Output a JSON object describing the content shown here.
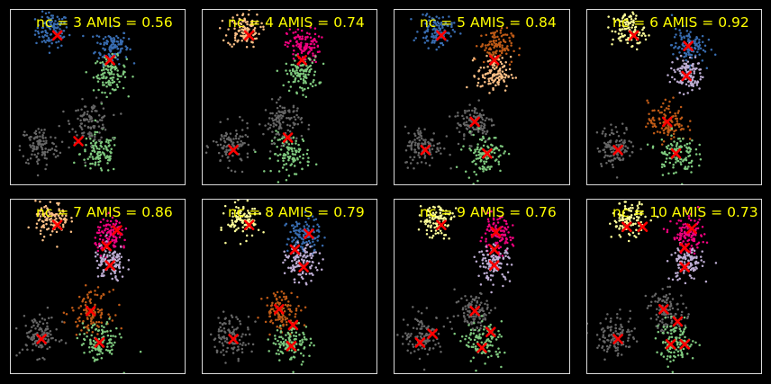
{
  "figure": {
    "background": "#000000",
    "frame_color": "#d9d9d9",
    "title_color": "#ffff00",
    "centroid_color": "#ff0000",
    "centroid_marker": "x-icon"
  },
  "chart_data": [
    {
      "type": "scatter",
      "title": "nc = 3 AMIS = 0.56",
      "xlim": [
        0,
        100
      ],
      "ylim": [
        0,
        100
      ],
      "grid": false,
      "axes_ticks": false,
      "clusters": [
        {
          "color": "#386cb0",
          "members": [
            [
              24,
              88,
              6
            ],
            [
              58,
              79,
              6
            ]
          ]
        },
        {
          "color": "#7fc97f",
          "members": [
            [
              57,
              63,
              6
            ],
            [
              51,
              18,
              7
            ]
          ]
        },
        {
          "color": "#666666",
          "members": [
            [
              46,
              36,
              7
            ],
            [
              17,
              22,
              7
            ]
          ]
        }
      ],
      "centroids": [
        [
          27,
          85
        ],
        [
          57,
          71
        ],
        [
          39,
          25
        ]
      ]
    },
    {
      "type": "scatter",
      "title": "nc = 4 AMIS = 0.74",
      "xlim": [
        0,
        100
      ],
      "ylim": [
        0,
        100
      ],
      "grid": false,
      "axes_ticks": false,
      "clusters": [
        {
          "color": "#fdc086",
          "members": [
            [
              24,
              88,
              6
            ]
          ]
        },
        {
          "color": "#f0027f",
          "members": [
            [
              58,
              79,
              6
            ]
          ]
        },
        {
          "color": "#7fc97f",
          "members": [
            [
              57,
              63,
              6
            ],
            [
              51,
              18,
              7
            ]
          ]
        },
        {
          "color": "#666666",
          "members": [
            [
              46,
              36,
              7
            ],
            [
              17,
              22,
              7
            ]
          ]
        }
      ],
      "centroids": [
        [
          27,
          85
        ],
        [
          57,
          71
        ],
        [
          49,
          27
        ],
        [
          18,
          20
        ]
      ]
    },
    {
      "type": "scatter",
      "title": "nc = 5 AMIS = 0.84",
      "xlim": [
        0,
        100
      ],
      "ylim": [
        0,
        100
      ],
      "grid": false,
      "axes_ticks": false,
      "clusters": [
        {
          "color": "#386cb0",
          "members": [
            [
              24,
              88,
              6
            ]
          ]
        },
        {
          "color": "#bf5b17",
          "members": [
            [
              58,
              79,
              6
            ]
          ]
        },
        {
          "color": "#fdc086",
          "members": [
            [
              57,
              63,
              6
            ]
          ]
        },
        {
          "color": "#666666",
          "members": [
            [
              46,
              36,
              7
            ],
            [
              17,
              22,
              7
            ]
          ]
        },
        {
          "color": "#7fc97f",
          "members": [
            [
              51,
              18,
              7
            ]
          ]
        }
      ],
      "centroids": [
        [
          27,
          85
        ],
        [
          57,
          71
        ],
        [
          46,
          36
        ],
        [
          18,
          20
        ],
        [
          53,
          18
        ]
      ]
    },
    {
      "type": "scatter",
      "title": "nc = 6 AMIS = 0.92",
      "xlim": [
        0,
        100
      ],
      "ylim": [
        0,
        100
      ],
      "grid": false,
      "axes_ticks": false,
      "clusters": [
        {
          "color": "#ffff99",
          "members": [
            [
              24,
              88,
              6
            ]
          ]
        },
        {
          "color": "#386cb0",
          "members": [
            [
              58,
              79,
              6
            ]
          ]
        },
        {
          "color": "#beaed4",
          "members": [
            [
              57,
              63,
              6
            ]
          ]
        },
        {
          "color": "#bf5b17",
          "members": [
            [
              46,
              36,
              7
            ]
          ]
        },
        {
          "color": "#666666",
          "members": [
            [
              17,
              22,
              7
            ]
          ]
        },
        {
          "color": "#7fc97f",
          "members": [
            [
              51,
              18,
              7
            ]
          ]
        }
      ],
      "centroids": [
        [
          27,
          85
        ],
        [
          58,
          79
        ],
        [
          57,
          62
        ],
        [
          46,
          36
        ],
        [
          18,
          20
        ],
        [
          51,
          18
        ]
      ]
    },
    {
      "type": "scatter",
      "title": "nc = 7 AMIS = 0.86",
      "xlim": [
        0,
        100
      ],
      "ylim": [
        0,
        100
      ],
      "grid": false,
      "axes_ticks": false,
      "clusters": [
        {
          "color": "#fdc086",
          "members": [
            [
              24,
              88,
              6
            ]
          ]
        },
        {
          "color": "#f0027f",
          "members": [
            [
              58,
              79,
              6
            ]
          ]
        },
        {
          "color": "#beaed4",
          "members": [
            [
              57,
              63,
              6
            ]
          ]
        },
        {
          "color": "#bf5b17",
          "members": [
            [
              46,
              36,
              7
            ]
          ]
        },
        {
          "color": "#666666",
          "members": [
            [
              17,
              22,
              7
            ]
          ]
        },
        {
          "color": "#7fc97f",
          "members": [
            [
              51,
              18,
              7
            ]
          ]
        }
      ],
      "centroids": [
        [
          27,
          85
        ],
        [
          61,
          82
        ],
        [
          55,
          73
        ],
        [
          57,
          62
        ],
        [
          46,
          36
        ],
        [
          18,
          20
        ],
        [
          51,
          18
        ]
      ]
    },
    {
      "type": "scatter",
      "title": "nc = 8 AMIS = 0.79",
      "xlim": [
        0,
        100
      ],
      "ylim": [
        0,
        100
      ],
      "grid": false,
      "axes_ticks": false,
      "clusters": [
        {
          "color": "#ffff99",
          "members": [
            [
              24,
              88,
              6
            ]
          ]
        },
        {
          "color": "#386cb0",
          "members": [
            [
              58,
              79,
              6
            ]
          ]
        },
        {
          "color": "#beaed4",
          "members": [
            [
              57,
              63,
              6
            ]
          ]
        },
        {
          "color": "#bf5b17",
          "members": [
            [
              46,
              36,
              7
            ]
          ]
        },
        {
          "color": "#666666",
          "members": [
            [
              17,
              22,
              7
            ]
          ]
        },
        {
          "color": "#7fc97f",
          "members": [
            [
              51,
              18,
              7
            ]
          ]
        }
      ],
      "centroids": [
        [
          27,
          85
        ],
        [
          61,
          80
        ],
        [
          53,
          71
        ],
        [
          58,
          61
        ],
        [
          44,
          37
        ],
        [
          52,
          28
        ],
        [
          18,
          20
        ],
        [
          51,
          16
        ]
      ]
    },
    {
      "type": "scatter",
      "title": "nc = 9 AMIS = 0.76",
      "xlim": [
        0,
        100
      ],
      "ylim": [
        0,
        100
      ],
      "grid": false,
      "axes_ticks": false,
      "clusters": [
        {
          "color": "#ffff99",
          "members": [
            [
              24,
              88,
              6
            ]
          ]
        },
        {
          "color": "#f0027f",
          "members": [
            [
              58,
              79,
              6
            ]
          ]
        },
        {
          "color": "#beaed4",
          "members": [
            [
              57,
              63,
              6
            ]
          ]
        },
        {
          "color": "#666666",
          "members": [
            [
              46,
              36,
              7
            ],
            [
              17,
              22,
              7
            ]
          ]
        },
        {
          "color": "#7fc97f",
          "members": [
            [
              51,
              18,
              7
            ]
          ]
        }
      ],
      "centroids": [
        [
          27,
          85
        ],
        [
          58,
          81
        ],
        [
          57,
          71
        ],
        [
          57,
          62
        ],
        [
          46,
          36
        ],
        [
          22,
          23
        ],
        [
          15,
          18
        ],
        [
          55,
          24
        ],
        [
          50,
          15
        ]
      ]
    },
    {
      "type": "scatter",
      "title": "nc = 10 AMIS = 0.73",
      "xlim": [
        0,
        100
      ],
      "ylim": [
        0,
        100
      ],
      "grid": false,
      "axes_ticks": false,
      "clusters": [
        {
          "color": "#ffff99",
          "members": [
            [
              24,
              88,
              6
            ]
          ]
        },
        {
          "color": "#f0027f",
          "members": [
            [
              58,
              79,
              6
            ]
          ]
        },
        {
          "color": "#beaed4",
          "members": [
            [
              57,
              63,
              6
            ]
          ]
        },
        {
          "color": "#666666",
          "members": [
            [
              46,
              36,
              7
            ],
            [
              17,
              22,
              7
            ]
          ]
        },
        {
          "color": "#7fc97f",
          "members": [
            [
              51,
              18,
              7
            ]
          ]
        }
      ],
      "centroids": [
        [
          23,
          84
        ],
        [
          32,
          84
        ],
        [
          60,
          83
        ],
        [
          56,
          72
        ],
        [
          56,
          61
        ],
        [
          44,
          37
        ],
        [
          52,
          30
        ],
        [
          18,
          20
        ],
        [
          48,
          17
        ],
        [
          56,
          17
        ]
      ]
    }
  ]
}
